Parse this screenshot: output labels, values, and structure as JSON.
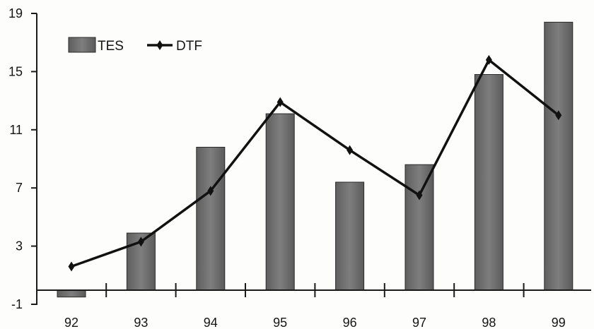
{
  "chart_data": {
    "type": "bar",
    "title": "",
    "xlabel": "",
    "ylabel": "",
    "categories": [
      "92",
      "93",
      "94",
      "95",
      "96",
      "97",
      "98",
      "99"
    ],
    "ylim": [
      -1,
      19
    ],
    "yticks": [
      -1,
      3,
      7,
      11,
      15,
      19
    ],
    "grid": false,
    "legend_position": "top-left",
    "series": [
      {
        "name": "TES",
        "type": "bar",
        "color": "#6f6f6f",
        "values": [
          -0.5,
          3.9,
          9.8,
          12.1,
          7.4,
          8.6,
          14.8,
          18.4
        ]
      },
      {
        "name": "DTF",
        "type": "line",
        "color": "#111111",
        "marker": "diamond",
        "values": [
          1.6,
          3.3,
          6.8,
          12.9,
          9.6,
          6.5,
          15.8,
          12.0
        ]
      }
    ]
  }
}
